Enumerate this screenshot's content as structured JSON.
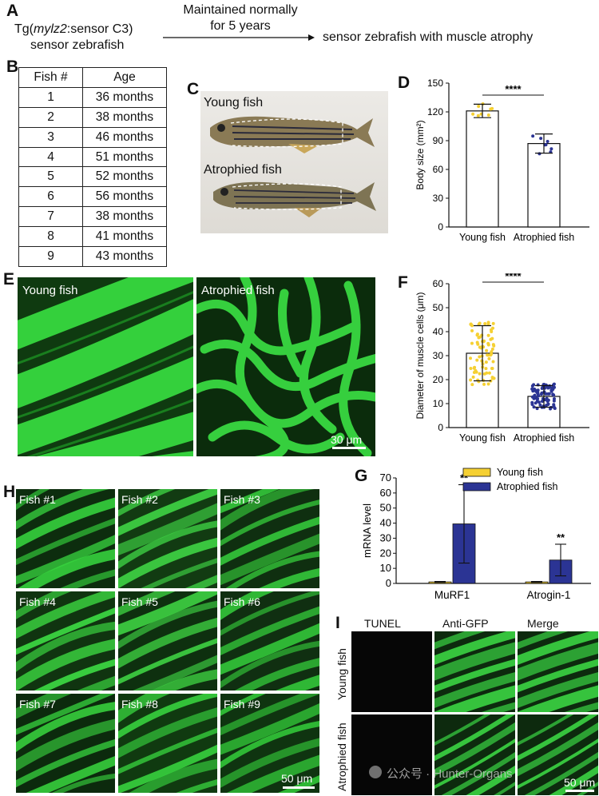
{
  "panelA": {
    "label": "A",
    "strain_pre": "Tg(",
    "strain_italic": "mylz2",
    "strain_post": ":sensor C3)",
    "strain_line2": "sensor zebrafish",
    "arrow_top1": "Maintained normally",
    "arrow_top2": "for 5 years",
    "result": "sensor zebrafish with muscle atrophy"
  },
  "panelB": {
    "label": "B",
    "headers": [
      "Fish #",
      "Age"
    ],
    "rows": [
      [
        "1",
        "36 months"
      ],
      [
        "2",
        "38 months"
      ],
      [
        "3",
        "46 months"
      ],
      [
        "4",
        "51 months"
      ],
      [
        "5",
        "52 months"
      ],
      [
        "6",
        "56 months"
      ],
      [
        "7",
        "38 months"
      ],
      [
        "8",
        "41 months"
      ],
      [
        "9",
        "43 months"
      ]
    ]
  },
  "panelC": {
    "label": "C",
    "young": "Young fish",
    "atrophied": "Atrophied fish"
  },
  "panelE": {
    "label": "E",
    "young": "Young fish",
    "atrophied": "Atrophied fish",
    "scale": "30 μm"
  },
  "panelH": {
    "label": "H",
    "tiles": [
      "Fish #1",
      "Fish #2",
      "Fish #3",
      "Fish #4",
      "Fish #5",
      "Fish #6",
      "Fish #7",
      "Fish #8",
      "Fish #9"
    ],
    "scale": "50 μm"
  },
  "panelI": {
    "label": "I",
    "columns": [
      "TUNEL",
      "Anti-GFP",
      "Merge"
    ],
    "rows": [
      "Young fish",
      "Atrophied fish"
    ],
    "scale": "50 μm"
  },
  "watermark": "公众号 · Hunter-Organs",
  "colors": {
    "young": "#f5d033",
    "atrophied": "#2b3494",
    "muscle_green": "#2fd13a"
  },
  "chart_data": [
    {
      "panel": "D",
      "type": "bar",
      "categories": [
        "Young fish",
        "Atrophied fish"
      ],
      "values": [
        121,
        87
      ],
      "errors": [
        7,
        10
      ],
      "ylabel": "Body size (mm²)",
      "ylim": [
        0,
        150
      ],
      "yticks": [
        0,
        30,
        60,
        90,
        120,
        150
      ],
      "significance": "****"
    },
    {
      "panel": "F",
      "type": "bar",
      "categories": [
        "Young fish",
        "Atrophied fish"
      ],
      "values": [
        31,
        13
      ],
      "errors": [
        11.5,
        4.5
      ],
      "ylabel": "Diameter of muscle cells (μm)",
      "ylim": [
        0,
        60
      ],
      "yticks": [
        0,
        10,
        20,
        30,
        40,
        50,
        60
      ],
      "significance": "****"
    },
    {
      "panel": "G",
      "type": "bar",
      "categories": [
        "MuRF1",
        "Atrogin-1"
      ],
      "series": [
        {
          "name": "Young fish",
          "values": [
            1,
            1
          ],
          "errors": [
            0.3,
            0.3
          ]
        },
        {
          "name": "Atrophied fish",
          "values": [
            39.5,
            15.5
          ],
          "errors": [
            26,
            10.5
          ]
        }
      ],
      "ylabel": "mRNA level",
      "ylim": [
        0,
        70
      ],
      "yticks": [
        0,
        10,
        20,
        30,
        40,
        50,
        60,
        70
      ],
      "significance": [
        "**",
        "**"
      ],
      "legend": "top-right"
    }
  ]
}
